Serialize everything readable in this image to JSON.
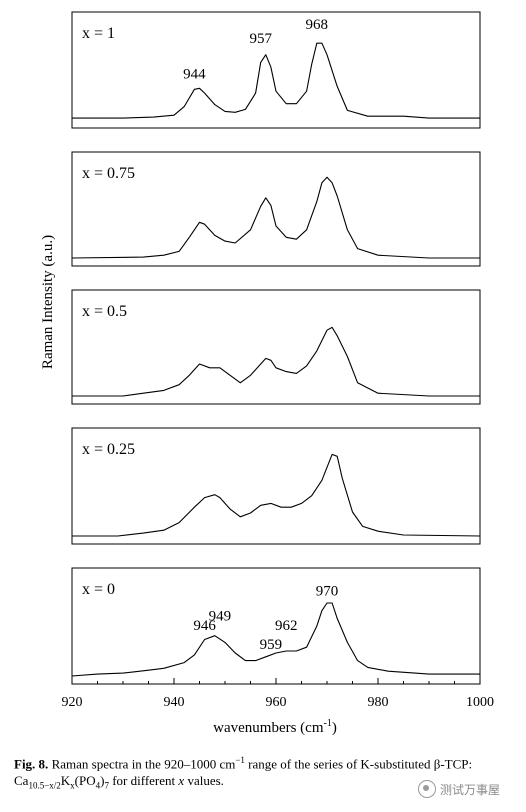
{
  "chart_data": {
    "type": "line",
    "xlabel": "wavenumbers (cm",
    "xlabel_sup": "-1",
    "ylabel": "Raman Intensity (a.u.)",
    "xlim": [
      920,
      1000
    ],
    "xticks": [
      920,
      940,
      960,
      980,
      1000
    ],
    "grid": false,
    "series": [
      {
        "name": "x = 1",
        "peak_labels": [
          {
            "x": 944,
            "y": 0.43,
            "text": "944"
          },
          {
            "x": 957,
            "y": 0.8,
            "text": "957"
          },
          {
            "x": 968,
            "y": 0.95,
            "text": "968"
          }
        ],
        "points": [
          [
            920,
            0.02
          ],
          [
            930,
            0.02
          ],
          [
            936,
            0.03
          ],
          [
            940,
            0.05
          ],
          [
            942,
            0.14
          ],
          [
            944,
            0.32
          ],
          [
            945,
            0.33
          ],
          [
            946,
            0.28
          ],
          [
            948,
            0.16
          ],
          [
            950,
            0.09
          ],
          [
            952,
            0.08
          ],
          [
            954,
            0.11
          ],
          [
            956,
            0.28
          ],
          [
            957,
            0.6
          ],
          [
            958,
            0.68
          ],
          [
            959,
            0.55
          ],
          [
            960,
            0.3
          ],
          [
            962,
            0.17
          ],
          [
            964,
            0.17
          ],
          [
            966,
            0.3
          ],
          [
            967,
            0.58
          ],
          [
            968,
            0.8
          ],
          [
            969,
            0.8
          ],
          [
            970,
            0.68
          ],
          [
            972,
            0.35
          ],
          [
            974,
            0.1
          ],
          [
            978,
            0.04
          ],
          [
            985,
            0.04
          ],
          [
            990,
            0.02
          ],
          [
            1000,
            0.02
          ]
        ]
      },
      {
        "name": "x = 0.75",
        "peak_labels": [],
        "points": [
          [
            920,
            0.0
          ],
          [
            934,
            0.01
          ],
          [
            938,
            0.03
          ],
          [
            941,
            0.07
          ],
          [
            943,
            0.22
          ],
          [
            945,
            0.38
          ],
          [
            946,
            0.36
          ],
          [
            948,
            0.24
          ],
          [
            950,
            0.18
          ],
          [
            952,
            0.16
          ],
          [
            955,
            0.3
          ],
          [
            957,
            0.55
          ],
          [
            958,
            0.64
          ],
          [
            959,
            0.56
          ],
          [
            960,
            0.34
          ],
          [
            962,
            0.22
          ],
          [
            964,
            0.2
          ],
          [
            966,
            0.3
          ],
          [
            968,
            0.6
          ],
          [
            969,
            0.8
          ],
          [
            970,
            0.86
          ],
          [
            971,
            0.8
          ],
          [
            972,
            0.66
          ],
          [
            974,
            0.3
          ],
          [
            976,
            0.1
          ],
          [
            980,
            0.03
          ],
          [
            990,
            0.0
          ],
          [
            1000,
            0.0
          ]
        ]
      },
      {
        "name": "x = 0.5",
        "peak_labels": [],
        "points": [
          [
            920,
            0.0
          ],
          [
            930,
            0.0
          ],
          [
            934,
            0.03
          ],
          [
            938,
            0.06
          ],
          [
            941,
            0.12
          ],
          [
            943,
            0.22
          ],
          [
            945,
            0.34
          ],
          [
            947,
            0.3
          ],
          [
            949,
            0.3
          ],
          [
            951,
            0.22
          ],
          [
            953,
            0.14
          ],
          [
            955,
            0.22
          ],
          [
            957,
            0.34
          ],
          [
            958,
            0.4
          ],
          [
            959,
            0.38
          ],
          [
            960,
            0.3
          ],
          [
            962,
            0.26
          ],
          [
            964,
            0.24
          ],
          [
            966,
            0.32
          ],
          [
            968,
            0.48
          ],
          [
            970,
            0.7
          ],
          [
            971,
            0.73
          ],
          [
            972,
            0.64
          ],
          [
            974,
            0.42
          ],
          [
            976,
            0.14
          ],
          [
            980,
            0.03
          ],
          [
            990,
            0.0
          ],
          [
            1000,
            0.0
          ]
        ]
      },
      {
        "name": "x = 0.25",
        "peak_labels": [],
        "points": [
          [
            920,
            0.0
          ],
          [
            929,
            0.0
          ],
          [
            934,
            0.03
          ],
          [
            938,
            0.06
          ],
          [
            941,
            0.14
          ],
          [
            944,
            0.3
          ],
          [
            946,
            0.4
          ],
          [
            948,
            0.43
          ],
          [
            949,
            0.4
          ],
          [
            951,
            0.28
          ],
          [
            953,
            0.2
          ],
          [
            955,
            0.24
          ],
          [
            957,
            0.32
          ],
          [
            959,
            0.34
          ],
          [
            961,
            0.3
          ],
          [
            963,
            0.3
          ],
          [
            965,
            0.34
          ],
          [
            967,
            0.42
          ],
          [
            969,
            0.58
          ],
          [
            971,
            0.85
          ],
          [
            972,
            0.83
          ],
          [
            973,
            0.6
          ],
          [
            975,
            0.25
          ],
          [
            977,
            0.1
          ],
          [
            980,
            0.05
          ],
          [
            985,
            0.01
          ],
          [
            1000,
            0.0
          ]
        ]
      },
      {
        "name": "x = 0",
        "peak_labels": [
          {
            "x": 946,
            "y": 0.48,
            "text": "946"
          },
          {
            "x": 949,
            "y": 0.58,
            "text": "949"
          },
          {
            "x": 959,
            "y": 0.28,
            "text": "959"
          },
          {
            "x": 962,
            "y": 0.48,
            "text": "962"
          },
          {
            "x": 970,
            "y": 0.84,
            "text": "970"
          }
        ],
        "points": [
          [
            920,
            0.0
          ],
          [
            925,
            0.02
          ],
          [
            930,
            0.03
          ],
          [
            935,
            0.06
          ],
          [
            938,
            0.08
          ],
          [
            942,
            0.14
          ],
          [
            944,
            0.22
          ],
          [
            946,
            0.38
          ],
          [
            948,
            0.42
          ],
          [
            950,
            0.35
          ],
          [
            952,
            0.24
          ],
          [
            954,
            0.16
          ],
          [
            956,
            0.16
          ],
          [
            958,
            0.2
          ],
          [
            960,
            0.24
          ],
          [
            962,
            0.26
          ],
          [
            964,
            0.26
          ],
          [
            966,
            0.3
          ],
          [
            968,
            0.52
          ],
          [
            969,
            0.68
          ],
          [
            970,
            0.76
          ],
          [
            971,
            0.76
          ],
          [
            972,
            0.6
          ],
          [
            974,
            0.35
          ],
          [
            976,
            0.16
          ],
          [
            978,
            0.09
          ],
          [
            982,
            0.05
          ],
          [
            990,
            0.02
          ],
          [
            1000,
            0.02
          ]
        ]
      }
    ]
  },
  "caption": {
    "fig_label": "Fig. 8.",
    "text_1": " Raman spectra in the 920–1000 cm",
    "sup_1": "−1",
    "text_2": " range of the series of K-substituted β-TCP: Ca",
    "sub_1": "10.5−x/2",
    "text_3": "K",
    "sub_2": "x",
    "text_4": "(PO",
    "sub_3": "4",
    "text_5": ")",
    "sub_4": "7",
    "text_6": " for different ",
    "italic_x": "x",
    "text_7": " values."
  },
  "watermark": {
    "text": "测试万事屋",
    "logo": "circle-logo"
  }
}
